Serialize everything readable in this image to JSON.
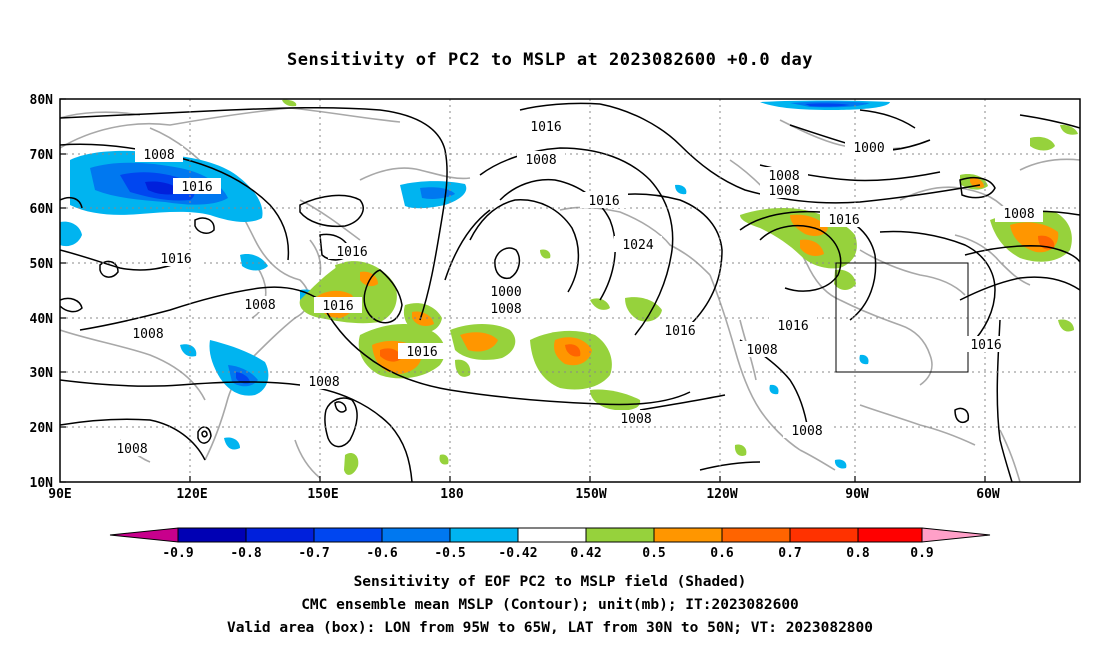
{
  "title": "Sensitivity of PC2 to MSLP at 2023082600 +0.0 day",
  "lat_labels": [
    "80N",
    "70N",
    "60N",
    "50N",
    "40N",
    "30N",
    "20N",
    "10N"
  ],
  "lon_labels": [
    "90E",
    "120E",
    "150E",
    "180",
    "150W",
    "120W",
    "90W",
    "60W"
  ],
  "contour_labels": [
    "1016",
    "1008",
    "1016",
    "1008",
    "1016",
    "1000",
    "1008",
    "1008",
    "1016",
    "1016",
    "1024",
    "1000",
    "1008",
    "1016",
    "1016",
    "1008",
    "1016",
    "1016",
    "1008",
    "1016",
    "1008",
    "1008",
    "1008",
    "1016",
    "1008",
    "1008"
  ],
  "colorbar": {
    "labels": [
      "-0.9",
      "-0.8",
      "-0.7",
      "-0.6",
      "-0.5",
      "-0.42",
      "0.42",
      "0.5",
      "0.6",
      "0.7",
      "0.8",
      "0.9"
    ],
    "colors": [
      "#c8008c",
      "#0000b4",
      "#0020dc",
      "#0046f0",
      "#0078f0",
      "#00b4f0",
      "#ffffff",
      "#96d23c",
      "#ff9600",
      "#ff6400",
      "#ff3200",
      "#ff0000",
      "#ffa0c8"
    ]
  },
  "captions": [
    "Sensitivity of EOF PC2 to MSLP field (Shaded)",
    "CMC ensemble mean MSLP (Contour); unit(mb); IT:2023082600",
    "Valid area (box): LON from 95W to 65W, LAT from 30N to 50N; VT: 2023082800"
  ],
  "valid_box": {
    "lon_west": -95,
    "lon_east": -65,
    "lat_south": 30,
    "lat_north": 50
  },
  "map_extent": {
    "lon_start": 90,
    "lon_end": 325,
    "lat_south": 10,
    "lat_north": 80
  }
}
